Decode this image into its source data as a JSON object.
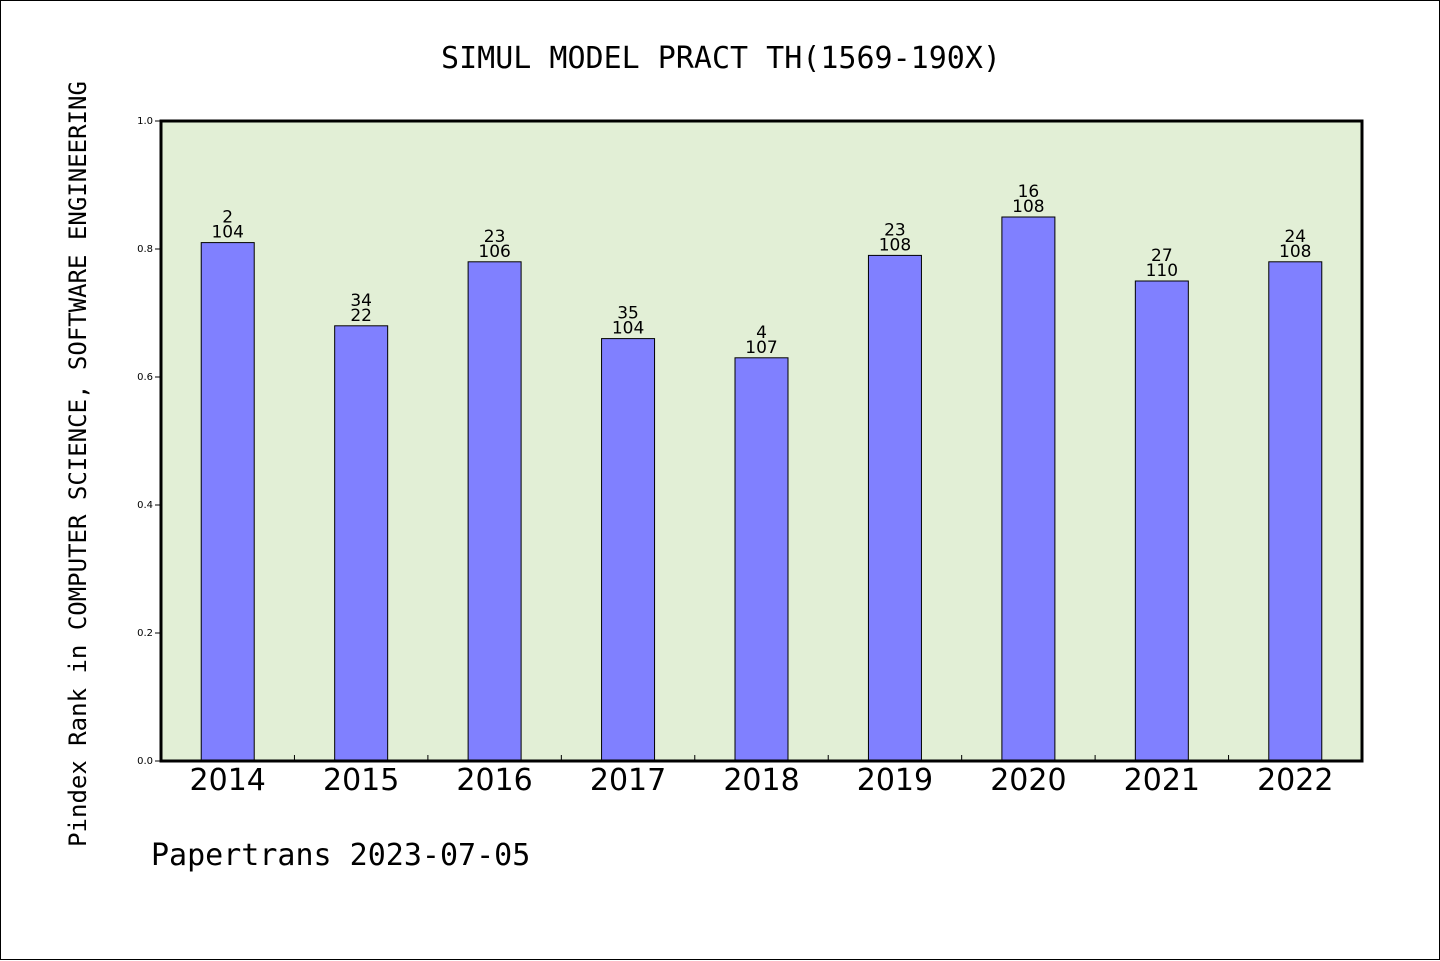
{
  "chart_data": {
    "type": "bar",
    "title": "SIMUL MODEL PRACT TH(1569-190X)",
    "xlabel": "",
    "ylabel": "Pindex Rank in COMPUTER SCIENCE, SOFTWARE ENGINEERING",
    "categories": [
      "2014",
      "2015",
      "2016",
      "2017",
      "2018",
      "2019",
      "2020",
      "2021",
      "2022"
    ],
    "values": [
      0.81,
      0.68,
      0.78,
      0.66,
      0.63,
      0.79,
      0.85,
      0.75,
      0.78
    ],
    "label_top": [
      "2",
      "34",
      "23",
      "35",
      "4",
      "23",
      "16",
      "27",
      "24"
    ],
    "label_bottom": [
      "104",
      "22",
      "106",
      "104",
      "107",
      "108",
      "108",
      "110",
      "108"
    ],
    "ylim": [
      0,
      1.0
    ],
    "yticks": [
      "0.0",
      "0.2",
      "0.4",
      "0.6",
      "0.8",
      "1.0"
    ],
    "grid": false,
    "colors": {
      "bar": "#8080ff",
      "plot_background": "#e2efd6",
      "axis": "#000000"
    }
  },
  "footer": {
    "text": "Papertrans 2023-07-05"
  }
}
